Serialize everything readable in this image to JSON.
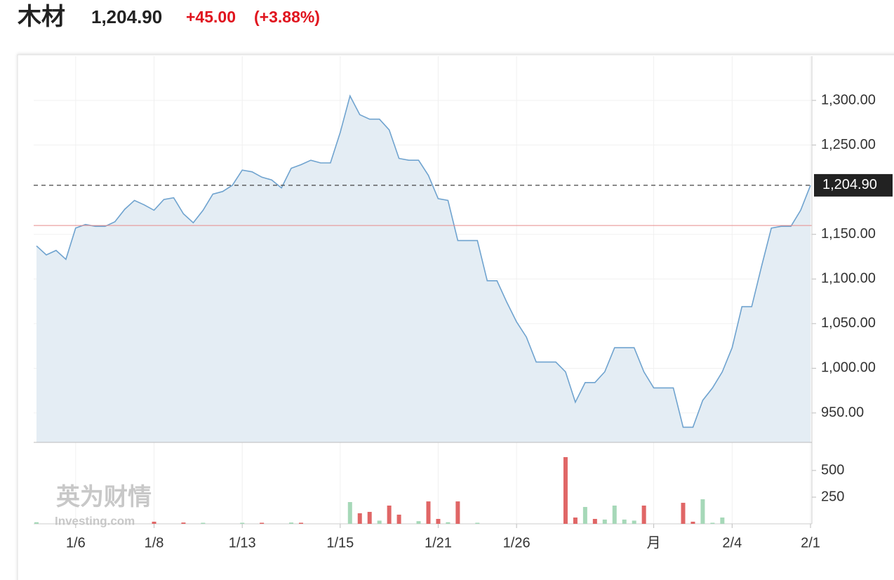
{
  "header": {
    "name": "木材",
    "price": "1,204.90",
    "change": "+45.00",
    "change_percent": "(+3.88%)"
  },
  "watermark": {
    "brand": "英为财情",
    "site": "Investing.com"
  },
  "chart_data": [
    {
      "type": "line",
      "color": "#6fa3cf",
      "fill": "#e4edf4",
      "grid": true,
      "categories": [
        null,
        null,
        null,
        null,
        "1/6",
        null,
        null,
        null,
        null,
        null,
        null,
        null,
        "1/8",
        null,
        null,
        null,
        null,
        null,
        null,
        null,
        null,
        "1/13",
        null,
        null,
        null,
        null,
        null,
        null,
        null,
        null,
        null,
        "1/15",
        null,
        null,
        null,
        null,
        null,
        null,
        null,
        null,
        null,
        "1/21",
        null,
        null,
        null,
        null,
        null,
        null,
        null,
        "1/26",
        null,
        null,
        null,
        null,
        null,
        null,
        null,
        null,
        null,
        null,
        null,
        null,
        null,
        "月",
        null,
        null,
        null,
        null,
        null,
        null,
        null,
        "2/4",
        null,
        null,
        null,
        null,
        null,
        null,
        null,
        "2/1"
      ],
      "values": [
        1137,
        1127,
        1132,
        1122,
        1157,
        1161,
        1159,
        1159,
        1164,
        1178,
        1188,
        1183,
        1177,
        1189,
        1191,
        1173,
        1163,
        1177,
        1195,
        1198,
        1205,
        1222,
        1220,
        1214,
        1211,
        1202,
        1224,
        1228,
        1233,
        1230,
        1230,
        1264,
        1305,
        1284,
        1279,
        1279,
        1267,
        1235,
        1233,
        1233,
        1216,
        1190,
        1188,
        1143,
        1143,
        1143,
        1098,
        1098,
        1074,
        1052,
        1035,
        1007,
        1007,
        1007,
        996,
        962,
        984,
        984,
        996,
        1023,
        1023,
        1023,
        996,
        978,
        978,
        978,
        934,
        934,
        964,
        978,
        996,
        1023,
        1069,
        1069,
        1114,
        1157,
        1159,
        1159,
        1177,
        1204.9
      ],
      "ylim": [
        917,
        1350
      ],
      "yticks": [
        {
          "value": 1300,
          "label": "1,300.00"
        },
        {
          "value": 1250,
          "label": "1,250.00"
        },
        {
          "value": 1150,
          "label": "1,150.00"
        },
        {
          "value": 1100,
          "label": "1,100.00"
        },
        {
          "value": 1050,
          "label": "1,050.00"
        },
        {
          "value": 1000,
          "label": "1,000.00"
        },
        {
          "value": 950,
          "label": "950.00"
        }
      ],
      "last_value": {
        "value": 1204.9,
        "label": "1,204.90"
      },
      "previous_close": 1159.9,
      "previous_close_color": "#e88a8a"
    },
    {
      "type": "bar",
      "values": [
        15,
        null,
        null,
        null,
        null,
        null,
        null,
        null,
        null,
        null,
        null,
        null,
        20,
        null,
        null,
        12,
        null,
        10,
        null,
        null,
        null,
        10,
        null,
        10,
        null,
        null,
        12,
        10,
        null,
        null,
        null,
        null,
        204,
        99,
        112,
        30,
        171,
        86,
        null,
        25,
        210,
        46,
        15,
        210,
        null,
        10,
        null,
        null,
        null,
        null,
        null,
        null,
        null,
        null,
        625,
        59,
        158,
        46,
        40,
        171,
        40,
        30,
        171,
        null,
        null,
        null,
        197,
        20,
        230,
        10,
        59,
        null,
        null,
        null,
        null,
        null,
        null,
        null,
        null,
        null
      ],
      "colors": [
        "#a6d8b8",
        null,
        null,
        null,
        null,
        null,
        null,
        null,
        null,
        null,
        null,
        null,
        "#e06666",
        null,
        null,
        "#e06666",
        null,
        "#a6d8b8",
        null,
        null,
        null,
        "#a6d8b8",
        null,
        "#e06666",
        null,
        null,
        "#a6d8b8",
        "#e06666",
        null,
        null,
        null,
        null,
        "#a6d8b8",
        "#e06666",
        "#e06666",
        "#a6d8b8",
        "#e06666",
        "#e06666",
        null,
        "#a6d8b8",
        "#e06666",
        "#e06666",
        "#a6d8b8",
        "#e06666",
        null,
        "#a6d8b8",
        null,
        null,
        null,
        null,
        null,
        null,
        null,
        null,
        "#e06666",
        "#e06666",
        "#a6d8b8",
        "#e06666",
        "#a6d8b8",
        "#a6d8b8",
        "#a6d8b8",
        "#a6d8b8",
        "#e06666",
        null,
        null,
        null,
        "#e06666",
        "#e06666",
        "#a6d8b8",
        "#a6d8b8",
        "#a6d8b8",
        null,
        null,
        null,
        null,
        null,
        null,
        null,
        null,
        null
      ],
      "ylim": [
        0,
        750
      ],
      "yticks": [
        250,
        500
      ]
    }
  ]
}
